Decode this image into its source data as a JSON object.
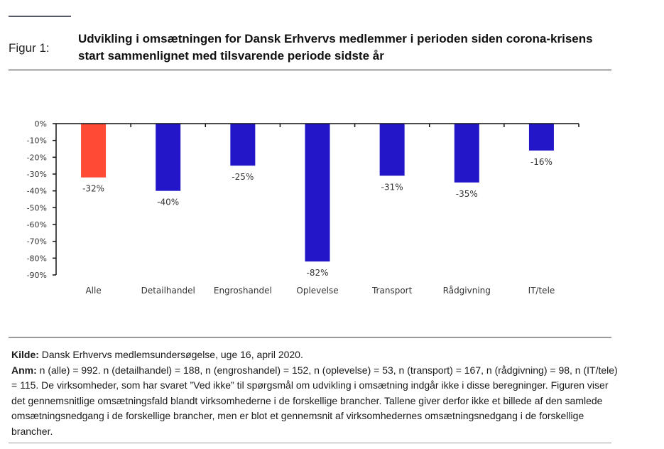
{
  "figure": {
    "label": "Figur 1:",
    "title": "Udvikling i omsætningen for Dansk Erhvervs medlemmer i perioden siden corona-krisens start sammenlignet med tilsvarende periode sidste år"
  },
  "chart_data": {
    "type": "bar",
    "title": "Udvikling i omsætningen for Dansk Erhvervs medlemmer i perioden siden corona-krisens start sammenlignet med tilsvarende periode sidste år",
    "xlabel": "",
    "ylabel": "",
    "categories": [
      "Alle",
      "Detailhandel",
      "Engroshandel",
      "Oplevelse",
      "Transport",
      "Rådgivning",
      "IT/tele"
    ],
    "values": [
      -32,
      -40,
      -25,
      -82,
      -31,
      -35,
      -16
    ],
    "data_labels": [
      "-32%",
      "-40%",
      "-25%",
      "-82%",
      "-31%",
      "-35%",
      "-16%"
    ],
    "colors": [
      "#ff4a36",
      "#2316c8",
      "#2316c8",
      "#2316c8",
      "#2316c8",
      "#2316c8",
      "#2316c8"
    ],
    "ylim": [
      -90,
      0
    ],
    "yticks": [
      0,
      -10,
      -20,
      -30,
      -40,
      -50,
      -60,
      -70,
      -80,
      -90
    ],
    "ytick_labels": [
      "0%",
      "-10%",
      "-20%",
      "-30%",
      "-40%",
      "-50%",
      "-60%",
      "-70%",
      "-80%",
      "-90%"
    ],
    "grid": false,
    "legend": "none"
  },
  "notes": {
    "source_label": "Kilde:",
    "source_text": " Dansk Erhvervs medlemsundersøgelse, uge 16, april 2020.",
    "note_label": "Anm:",
    "note_text": " n (alle) = 992. n (detailhandel) = 188, n (engroshandel) = 152, n (oplevelse) = 53, n (transport) = 167, n (rådgivning) = 98, n (IT/tele) = 115. De virksomheder, som har svaret ”Ved ikke” til spørgsmål om udvikling i omsætning indgår ikke i disse beregninger. Figuren viser det gennemsnitlige omsætningsfald blandt virksomhederne i de forskellige brancher. Tallene giver derfor ikke et billede af den samlede omsætningsnedgang i de forskellige brancher, men er blot et gennemsnit af virksomhedernes omsætningsnedgang i de forskellige brancher."
  }
}
